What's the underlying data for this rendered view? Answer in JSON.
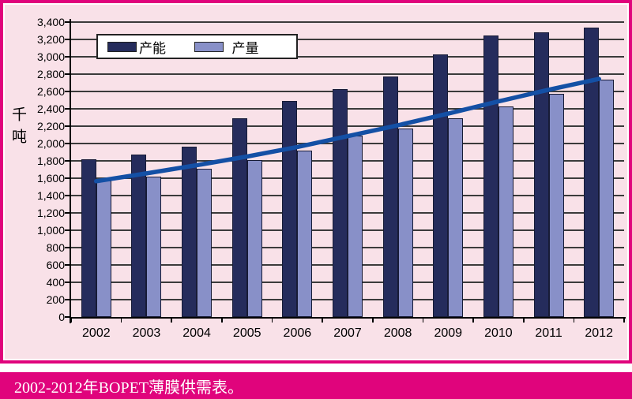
{
  "colors": {
    "background_pink": "#f9e1e8",
    "frame_magenta": "#e0047c",
    "capacity_bar": "#252c5c",
    "production_bar": "#8890c8",
    "trend_line": "#1450a5",
    "grid_line": "#3b3b3b",
    "caption_text": "#ffffff"
  },
  "caption": {
    "text": "2002-2012年BOPET薄膜供需表。"
  },
  "chart_data": {
    "type": "bar",
    "title": "",
    "xlabel": "",
    "ylabel": "千吨",
    "categories": [
      "2002",
      "2003",
      "2004",
      "2005",
      "2006",
      "2007",
      "2008",
      "2009",
      "2010",
      "2011",
      "2012"
    ],
    "series": [
      {
        "name": "产能",
        "type": "bar",
        "values": [
          1820,
          1870,
          1960,
          2290,
          2490,
          2630,
          2770,
          3030,
          3250,
          3280,
          3340
        ]
      },
      {
        "name": "产量",
        "type": "bar",
        "values": [
          1570,
          1620,
          1710,
          1810,
          1920,
          2090,
          2170,
          2290,
          2430,
          2570,
          2740
        ]
      },
      {
        "name": "趋势线",
        "type": "line",
        "values": [
          1565,
          1655,
          1750,
          1850,
          1960,
          2085,
          2210,
          2345,
          2485,
          2620,
          2745
        ]
      }
    ],
    "ylim": [
      0,
      3400
    ],
    "ytick_step": 200,
    "ytick_labels": [
      "0",
      "200",
      "400",
      "600",
      "800",
      "1,000",
      "1,200",
      "1,400",
      "1,600",
      "1,800",
      "2,000",
      "2,200",
      "2,400",
      "2,600",
      "2,800",
      "3,000",
      "3,200",
      "3,400"
    ],
    "grid": true,
    "legend_position": "top-left",
    "legend_items": [
      "产能",
      "产量"
    ]
  }
}
